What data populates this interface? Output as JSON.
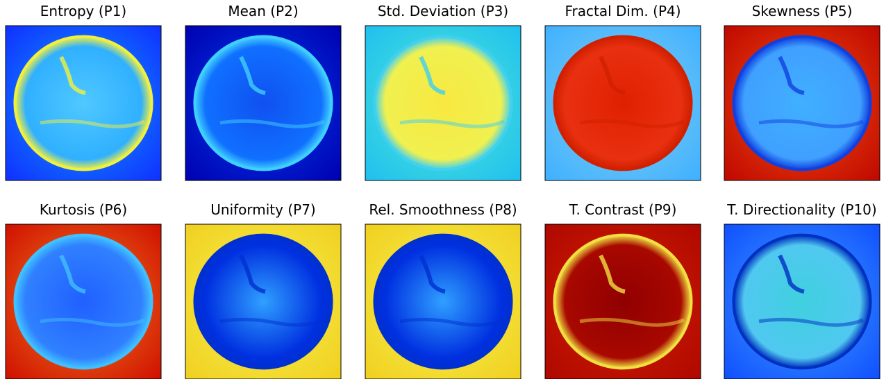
{
  "panels": [
    {
      "title": "Entropy (P1)"
    },
    {
      "title": "Mean (P2)"
    },
    {
      "title": "Std. Deviation (P3)"
    },
    {
      "title": "Fractal Dim. (P4)"
    },
    {
      "title": "Skewness (P5)"
    },
    {
      "title": "Kurtosis (P6)"
    },
    {
      "title": "Uniformity (P7)"
    },
    {
      "title": "Rel. Smoothness (P8)"
    },
    {
      "title": "T. Contrast (P9)"
    },
    {
      "title": "T. Directionality (P10)"
    }
  ]
}
